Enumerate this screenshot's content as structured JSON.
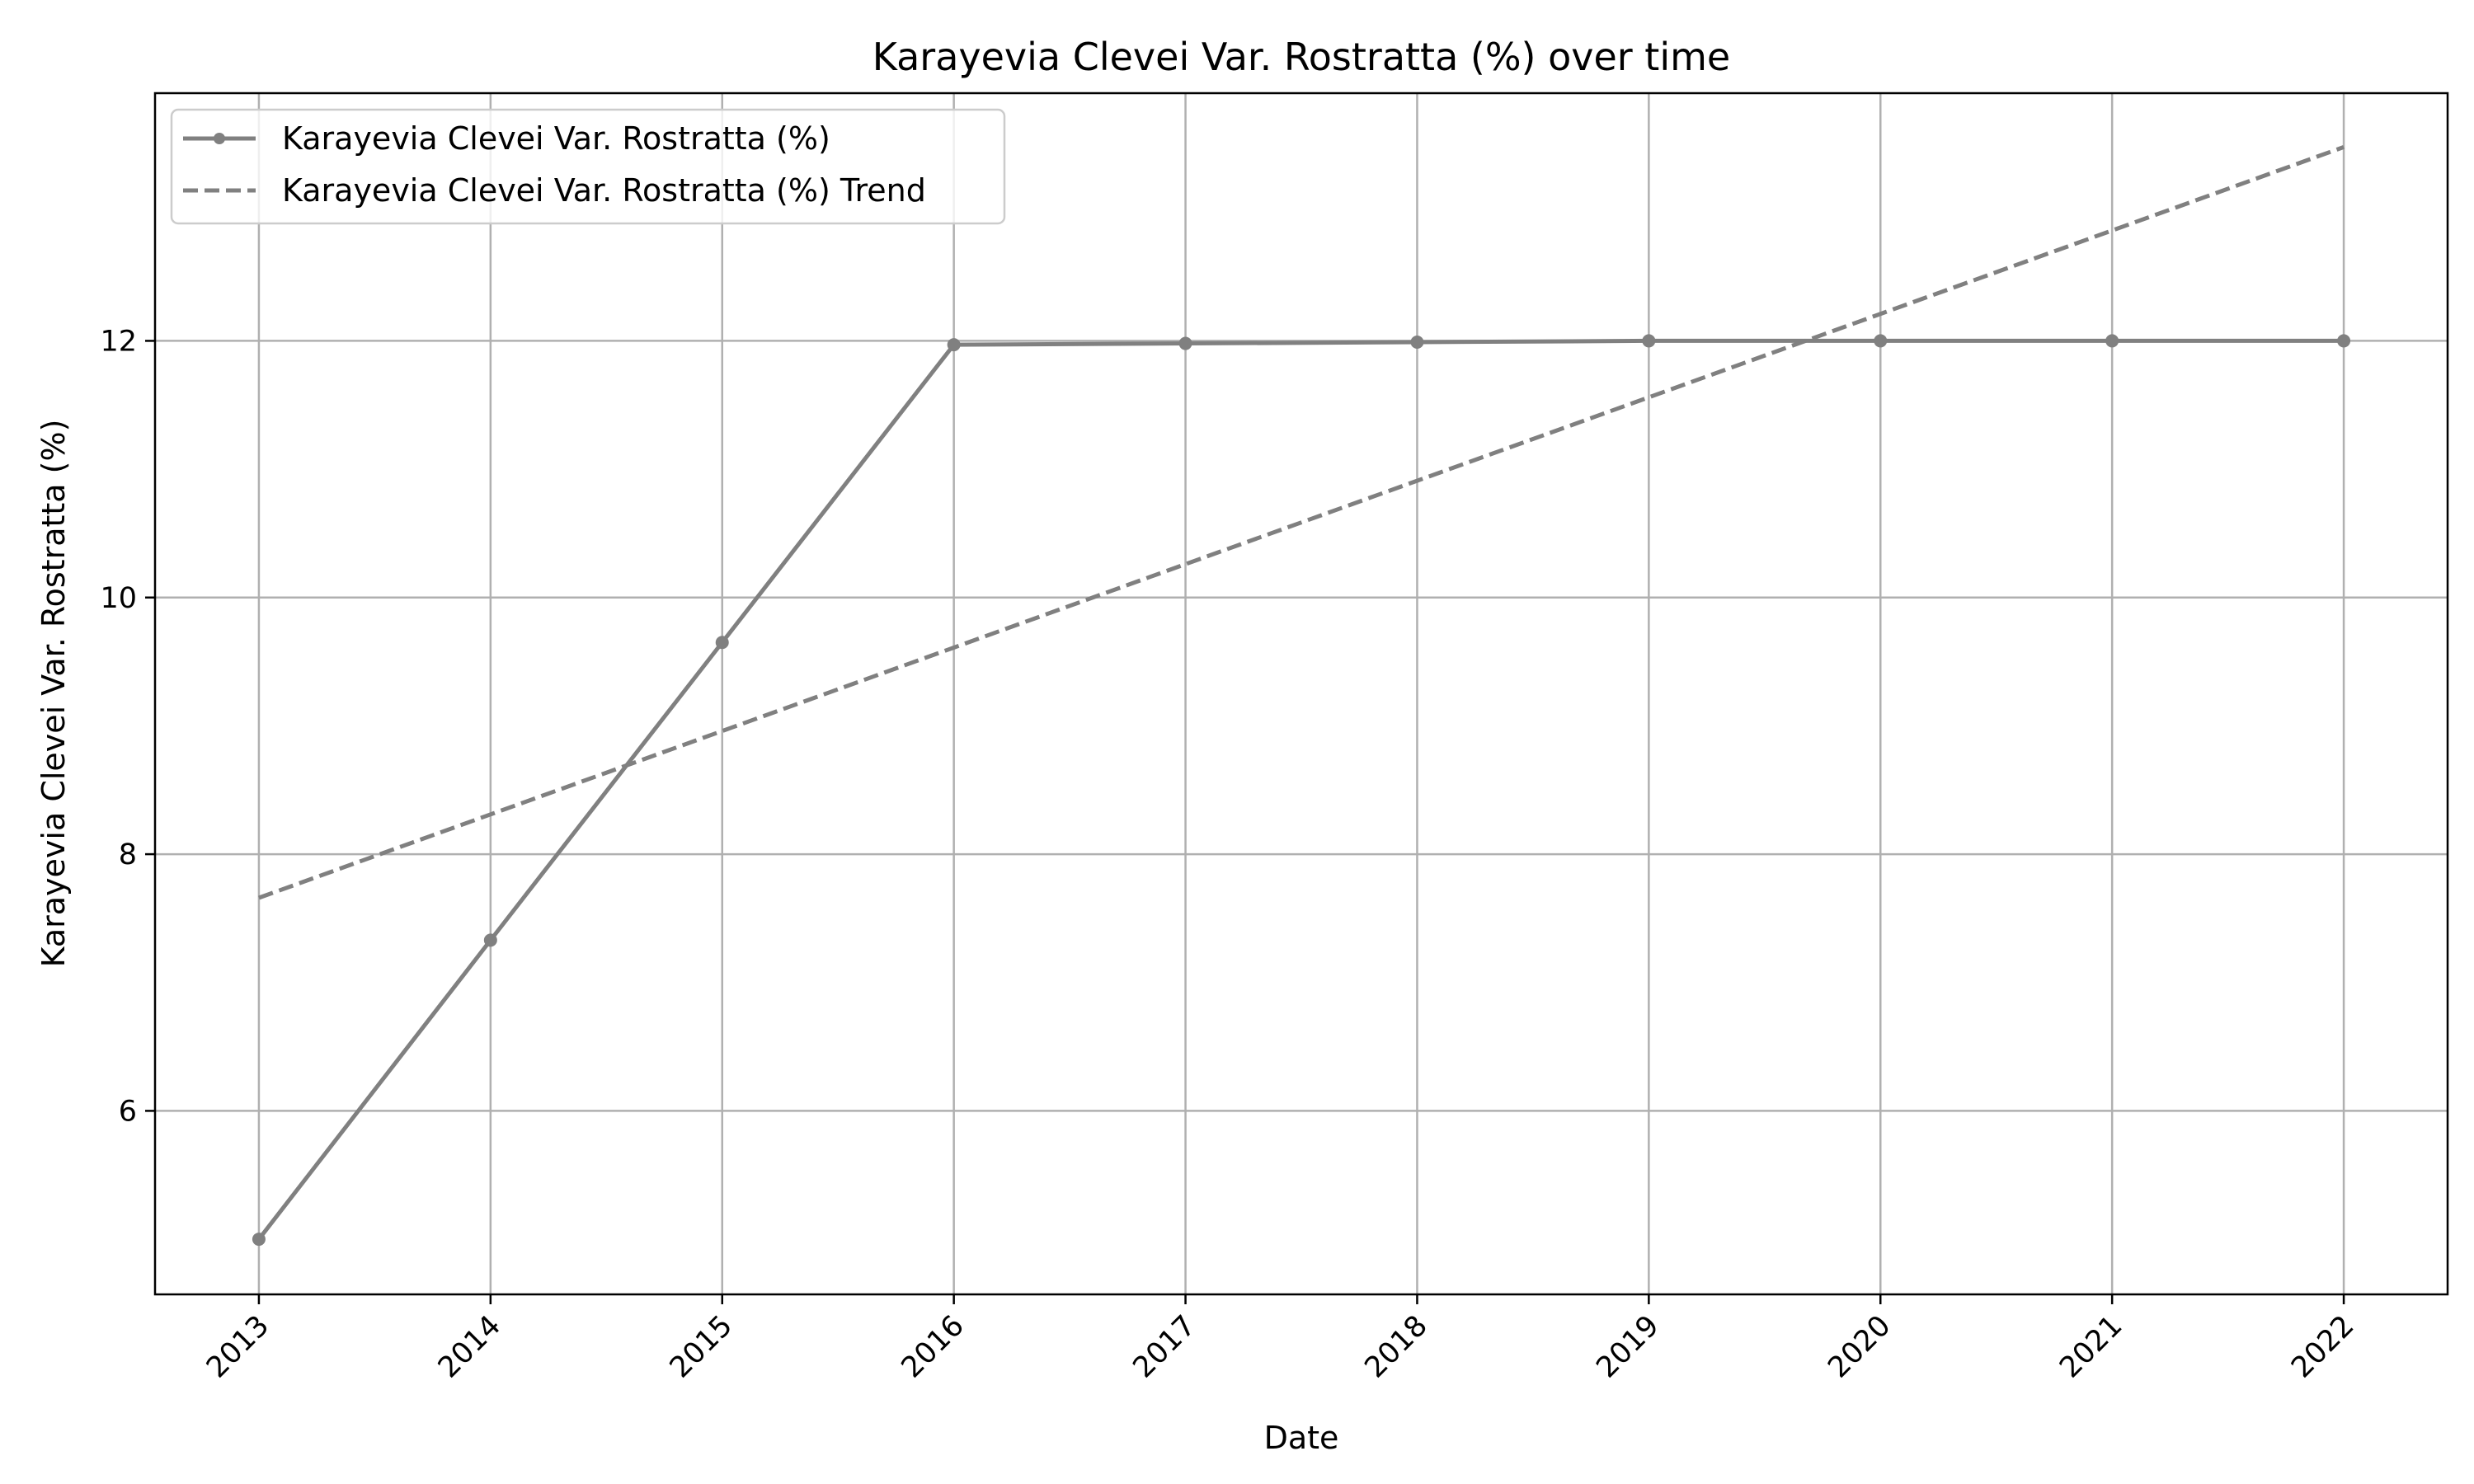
{
  "chart_data": {
    "type": "line",
    "title": "Karayevia Clevei Var. Rostratta (%) over time",
    "xlabel": "Date",
    "ylabel": "Karayevia Clevei Var. Rostratta (%)",
    "x": [
      "2013",
      "2014",
      "2015",
      "2016",
      "2017",
      "2018",
      "2019",
      "2020",
      "2021",
      "2022"
    ],
    "yticks": [
      6,
      8,
      10,
      12
    ],
    "ylim": [
      4.57,
      13.93
    ],
    "grid": true,
    "legend_position": "top-left",
    "series": [
      {
        "name": "Karayevia Clevei Var. Rostratta (%)",
        "style": "solid-with-markers",
        "color": "#808080",
        "values": [
          5.0,
          7.33,
          9.65,
          11.97,
          11.98,
          11.99,
          12.0,
          12.0,
          12.0,
          12.0
        ]
      },
      {
        "name": "Karayevia Clevei Var. Rostratta (%) Trend",
        "style": "dashed",
        "color": "#808080",
        "values": [
          7.66,
          8.31,
          8.96,
          9.61,
          10.26,
          10.91,
          11.56,
          12.21,
          12.86,
          13.51
        ]
      }
    ]
  }
}
